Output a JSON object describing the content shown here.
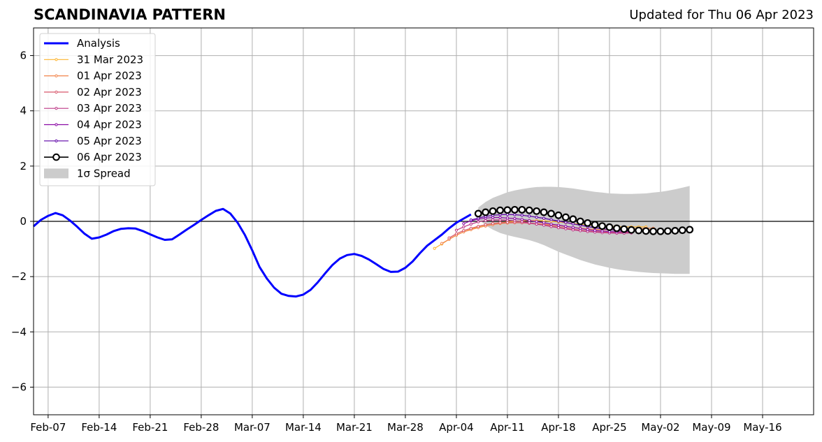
{
  "header": {
    "title": "SCANDINAVIA PATTERN",
    "updated": "Updated for Thu 06 Apr 2023"
  },
  "chart_data": {
    "type": "line",
    "title": "SCANDINAVIA PATTERN",
    "ylim": [
      -7,
      7
    ],
    "yticks": [
      6,
      4,
      2,
      0,
      -2,
      -4,
      -6
    ],
    "ytick_labels": [
      "6",
      "4",
      "2",
      "0",
      "−2",
      "−4",
      "−6"
    ],
    "xlim": [
      "2023-02-05",
      "2023-05-23"
    ],
    "xticks": [
      "2023-02-07",
      "2023-02-14",
      "2023-02-21",
      "2023-02-28",
      "2023-03-07",
      "2023-03-14",
      "2023-03-21",
      "2023-03-28",
      "2023-04-04",
      "2023-04-11",
      "2023-04-18",
      "2023-04-25",
      "2023-05-02",
      "2023-05-09",
      "2023-05-16"
    ],
    "xtick_labels": [
      "Feb-07",
      "Feb-14",
      "Feb-21",
      "Feb-28",
      "Mar-07",
      "Mar-14",
      "Mar-21",
      "Mar-28",
      "Apr-04",
      "Apr-11",
      "Apr-18",
      "Apr-25",
      "May-02",
      "May-09",
      "May-16"
    ],
    "grid": true,
    "legend_position": "upper-left",
    "colors": {
      "analysis": "#0000ff",
      "spread": "#cccccc",
      "zero_line": "#000000",
      "grid": "#b0b0b0"
    },
    "analysis": {
      "name": "Analysis",
      "color": "#0000ff",
      "start": "2023-02-05",
      "values": [
        -0.18,
        0.05,
        0.2,
        0.3,
        0.22,
        0.03,
        -0.2,
        -0.45,
        -0.63,
        -0.58,
        -0.48,
        -0.35,
        -0.27,
        -0.25,
        -0.26,
        -0.35,
        -0.47,
        -0.58,
        -0.67,
        -0.65,
        -0.48,
        -0.3,
        -0.13,
        0.05,
        0.22,
        0.38,
        0.45,
        0.28,
        -0.05,
        -0.5,
        -1.05,
        -1.65,
        -2.07,
        -2.4,
        -2.62,
        -2.7,
        -2.72,
        -2.65,
        -2.48,
        -2.2,
        -1.88,
        -1.58,
        -1.35,
        -1.22,
        -1.18,
        -1.25,
        -1.38,
        -1.55,
        -1.72,
        -1.83,
        -1.82,
        -1.68,
        -1.45,
        -1.15,
        -0.88,
        -0.68,
        -0.48,
        -0.25,
        -0.05,
        0.1,
        0.25
      ]
    },
    "spread": {
      "name": "1σ Spread",
      "color": "#cccccc",
      "start": "2023-04-07",
      "upper": [
        0.5,
        0.7,
        0.85,
        0.95,
        1.05,
        1.12,
        1.17,
        1.21,
        1.24,
        1.25,
        1.25,
        1.24,
        1.22,
        1.19,
        1.15,
        1.11,
        1.07,
        1.04,
        1.01,
        1.0,
        0.99,
        0.99,
        1.0,
        1.01,
        1.04,
        1.07,
        1.11,
        1.16,
        1.22,
        1.28
      ],
      "lower": [
        0.1,
        -0.15,
        -0.3,
        -0.42,
        -0.5,
        -0.56,
        -0.62,
        -0.68,
        -0.76,
        -0.86,
        -0.98,
        -1.1,
        -1.2,
        -1.3,
        -1.4,
        -1.48,
        -1.56,
        -1.62,
        -1.68,
        -1.73,
        -1.77,
        -1.8,
        -1.83,
        -1.85,
        -1.87,
        -1.88,
        -1.89,
        -1.9,
        -1.9,
        -1.9
      ]
    },
    "forecasts": [
      {
        "name": "31 Mar 2023",
        "color": "#fdb42f",
        "start": "2023-04-01",
        "values": [
          -0.98,
          -0.82,
          -0.65,
          -0.5,
          -0.38,
          -0.28,
          -0.2,
          -0.13,
          -0.08,
          -0.05,
          -0.02,
          0.0,
          0.02,
          0.03,
          0.03,
          0.02,
          0.0,
          -0.02,
          -0.05,
          -0.08,
          -0.1,
          -0.13,
          -0.15,
          -0.17,
          -0.18,
          -0.19,
          -0.2,
          -0.2,
          -0.2,
          -0.2
        ]
      },
      {
        "name": "01 Apr 2023",
        "color": "#f2844b",
        "start": "2023-04-02",
        "values": [
          -0.8,
          -0.65,
          -0.5,
          -0.38,
          -0.3,
          -0.23,
          -0.17,
          -0.12,
          -0.08,
          -0.06,
          -0.05,
          -0.05,
          -0.06,
          -0.08,
          -0.1,
          -0.13,
          -0.16,
          -0.19,
          -0.22,
          -0.25,
          -0.27,
          -0.29,
          -0.3,
          -0.3,
          -0.3,
          -0.29,
          -0.28,
          -0.26,
          -0.25,
          -0.25
        ]
      },
      {
        "name": "02 Apr 2023",
        "color": "#d8576b",
        "start": "2023-04-03",
        "values": [
          -0.6,
          -0.45,
          -0.33,
          -0.25,
          -0.18,
          -0.12,
          -0.08,
          -0.05,
          -0.04,
          -0.04,
          -0.05,
          -0.07,
          -0.1,
          -0.13,
          -0.17,
          -0.21,
          -0.25,
          -0.28,
          -0.32,
          -0.35,
          -0.37,
          -0.39,
          -0.4,
          -0.4,
          -0.4,
          -0.4
        ]
      },
      {
        "name": "03 Apr 2023",
        "color": "#bd3786",
        "start": "2023-04-04",
        "values": [
          -0.32,
          -0.2,
          -0.1,
          -0.02,
          0.03,
          0.05,
          0.05,
          0.04,
          0.02,
          -0.01,
          -0.05,
          -0.1,
          -0.14,
          -0.19,
          -0.23,
          -0.27,
          -0.31,
          -0.34,
          -0.37,
          -0.39,
          -0.41,
          -0.42,
          -0.43,
          -0.43,
          -0.42
        ]
      },
      {
        "name": "04 Apr 2023",
        "color": "#8b0aa5",
        "start": "2023-04-05",
        "values": [
          -0.08,
          0.02,
          0.08,
          0.12,
          0.14,
          0.14,
          0.12,
          0.1,
          0.07,
          0.03,
          -0.01,
          -0.05,
          -0.1,
          -0.14,
          -0.18,
          -0.22,
          -0.26,
          -0.3,
          -0.33,
          -0.35,
          -0.37,
          -0.38,
          -0.38,
          -0.37
        ]
      },
      {
        "name": "05 Apr 2023",
        "color": "#5c01a6",
        "start": "2023-04-06",
        "values": [
          0.05,
          0.12,
          0.18,
          0.22,
          0.24,
          0.25,
          0.24,
          0.22,
          0.19,
          0.15,
          0.11,
          0.06,
          0.01,
          -0.04,
          -0.09,
          -0.14,
          -0.19,
          -0.23,
          -0.27,
          -0.3,
          -0.32,
          -0.33,
          -0.34,
          -0.34
        ]
      },
      {
        "name": "06 Apr 2023",
        "color": "#000000",
        "start": "2023-04-07",
        "values": [
          0.28,
          0.33,
          0.37,
          0.4,
          0.41,
          0.42,
          0.42,
          0.4,
          0.37,
          0.33,
          0.28,
          0.22,
          0.15,
          0.08,
          0.0,
          -0.06,
          -0.12,
          -0.17,
          -0.21,
          -0.25,
          -0.28,
          -0.31,
          -0.33,
          -0.35,
          -0.36,
          -0.36,
          -0.35,
          -0.34,
          -0.32,
          -0.3
        ]
      }
    ]
  }
}
